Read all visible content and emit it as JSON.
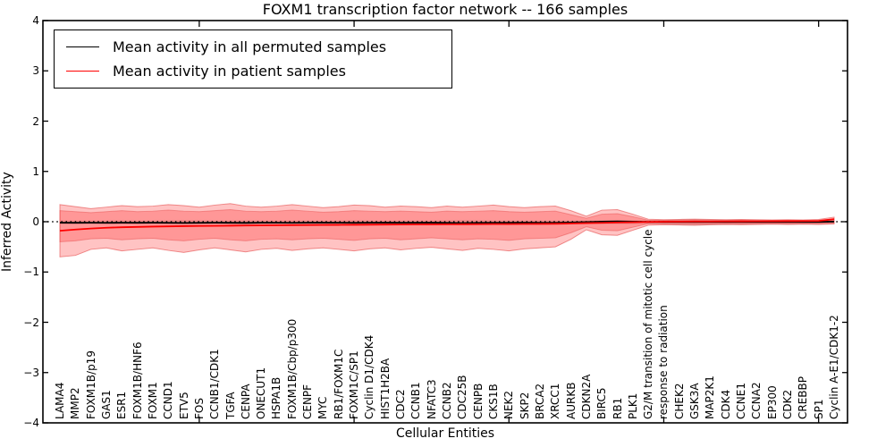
{
  "chart": {
    "title": "FOXM1 transcription factor network -- 166 samples",
    "xlabel": "Cellular Entities",
    "ylabel": "Inferred Activity"
  },
  "legend": {
    "items": [
      {
        "label": "Mean activity in all permuted samples",
        "color": "#000000"
      },
      {
        "label": "Mean activity in patient samples",
        "color": "#ff0000"
      }
    ]
  },
  "chart_data": {
    "type": "line",
    "title": "FOXM1 transcription factor network -- 166 samples",
    "xlabel": "Cellular Entities",
    "ylabel": "Inferred Activity",
    "ylim": [
      -4,
      4
    ],
    "grid": false,
    "legend_position": "upper left",
    "yticks": [
      {
        "value": 4,
        "label": "4"
      },
      {
        "value": 3,
        "label": "3"
      },
      {
        "value": 2,
        "label": "2"
      },
      {
        "value": 1,
        "label": "1"
      },
      {
        "value": 0,
        "label": "0"
      },
      {
        "value": -1,
        "label": "−1"
      },
      {
        "value": -2,
        "label": "−2"
      },
      {
        "value": -3,
        "label": "−3"
      },
      {
        "value": -4,
        "label": "−4"
      }
    ],
    "xticks_major": [
      10,
      20,
      30,
      40,
      50
    ],
    "categories": [
      "LAMA4",
      "MMP2",
      "FOXM1B/p19",
      "GAS1",
      "ESR1",
      "FOXM1B/HNF6",
      "FOXM1",
      "CCND1",
      "ETV5",
      "FOS",
      "CCNB1/CDK1",
      "TGFA",
      "CENPA",
      "ONECUT1",
      "HSPA1B",
      "FOXM1B/Cbp/p300",
      "CENPF",
      "MYC",
      "RB1/FOXM1C",
      "FOXM1C/SP1",
      "Cyclin D1/CDK4",
      "HIST1H2BA",
      "CDC2",
      "CCNB1",
      "NFATC3",
      "CCNB2",
      "CDC25B",
      "CENPB",
      "CKS1B",
      "NEK2",
      "SKP2",
      "BRCA2",
      "XRCC1",
      "AURKB",
      "CDKN2A",
      "BIRC5",
      "RB1",
      "PLK1",
      "G2/M transition of mitotic cell cycle",
      "response to radiation",
      "CHEK2",
      "GSK3A",
      "MAP2K1",
      "CDK4",
      "CCNE1",
      "CCNA2",
      "EP300",
      "CDK2",
      "CREBBP",
      "SP1",
      "Cyclin A-E1/CDK1-2"
    ],
    "zero_line": {
      "style": "dotted",
      "color": "#000000",
      "y": 0
    },
    "series": [
      {
        "name": "Mean activity in all permuted samples",
        "color": "#000000",
        "values": [
          -0.02,
          -0.021,
          -0.02,
          -0.022,
          -0.02,
          -0.021,
          -0.02,
          -0.022,
          -0.025,
          -0.022,
          -0.02,
          -0.021,
          -0.023,
          -0.02,
          -0.02,
          -0.022,
          -0.02,
          -0.019,
          -0.02,
          -0.022,
          -0.02,
          -0.019,
          -0.021,
          -0.02,
          -0.019,
          -0.023,
          -0.026,
          -0.022,
          -0.02,
          -0.02,
          -0.019,
          -0.02,
          -0.02,
          -0.015,
          -0.008,
          0.002,
          0.006,
          0.002,
          -0.004,
          -0.005,
          -0.005,
          -0.004,
          -0.005,
          -0.005,
          -0.004,
          -0.005,
          -0.004,
          -0.005,
          -0.004,
          -0.003,
          0.002
        ]
      },
      {
        "name": "Mean activity in patient samples",
        "color": "#ff0000",
        "values": [
          -0.18,
          -0.155,
          -0.135,
          -0.12,
          -0.11,
          -0.103,
          -0.097,
          -0.092,
          -0.088,
          -0.085,
          -0.082,
          -0.079,
          -0.076,
          -0.073,
          -0.071,
          -0.069,
          -0.067,
          -0.065,
          -0.063,
          -0.061,
          -0.059,
          -0.057,
          -0.056,
          -0.054,
          -0.053,
          -0.051,
          -0.05,
          -0.049,
          -0.047,
          -0.046,
          -0.044,
          -0.043,
          -0.041,
          -0.036,
          -0.028,
          -0.022,
          -0.016,
          -0.01,
          -0.004,
          0.0,
          0.002,
          0.004,
          0.005,
          0.007,
          0.008,
          0.009,
          0.01,
          0.012,
          0.013,
          0.016,
          0.05
        ]
      }
    ],
    "bands": [
      {
        "name": "permuted-samples-band",
        "fill": "rgba(60,60,60,0.15)",
        "edge": "none",
        "top": [
          0.03,
          0.03,
          0.028,
          0.03,
          0.032,
          0.03,
          0.03,
          0.032,
          0.035,
          0.032,
          0.03,
          0.03,
          0.032,
          0.03,
          0.03,
          0.03,
          0.03,
          0.03,
          0.03,
          0.032,
          0.03,
          0.03,
          0.03,
          0.03,
          0.03,
          0.032,
          0.035,
          0.032,
          0.03,
          0.03,
          0.03,
          0.03,
          0.03,
          0.028,
          0.025,
          0.03,
          0.032,
          0.03,
          0.028,
          0.035,
          0.045,
          0.05,
          0.045,
          0.04,
          0.035,
          0.03,
          0.03,
          0.03,
          0.03,
          0.03,
          0.03
        ],
        "bottom": [
          -0.05,
          -0.05,
          -0.048,
          -0.05,
          -0.052,
          -0.05,
          -0.05,
          -0.055,
          -0.06,
          -0.055,
          -0.05,
          -0.05,
          -0.055,
          -0.05,
          -0.05,
          -0.052,
          -0.05,
          -0.05,
          -0.05,
          -0.052,
          -0.05,
          -0.05,
          -0.052,
          -0.05,
          -0.05,
          -0.055,
          -0.06,
          -0.055,
          -0.05,
          -0.05,
          -0.05,
          -0.05,
          -0.05,
          -0.045,
          -0.04,
          -0.05,
          -0.052,
          -0.05,
          -0.045,
          -0.055,
          -0.07,
          -0.075,
          -0.07,
          -0.06,
          -0.055,
          -0.05,
          -0.05,
          -0.05,
          -0.05,
          -0.045,
          -0.04
        ]
      },
      {
        "name": "patient-samples-outer-band",
        "fill": "rgba(255,40,40,0.28)",
        "edge": "rgba(225,60,60,0.55)",
        "top": [
          0.34,
          0.3,
          0.26,
          0.29,
          0.32,
          0.3,
          0.31,
          0.34,
          0.32,
          0.29,
          0.33,
          0.36,
          0.31,
          0.29,
          0.31,
          0.34,
          0.31,
          0.28,
          0.3,
          0.33,
          0.32,
          0.29,
          0.31,
          0.3,
          0.28,
          0.31,
          0.29,
          0.31,
          0.33,
          0.3,
          0.28,
          0.3,
          0.31,
          0.22,
          0.11,
          0.23,
          0.24,
          0.15,
          0.05,
          0.04,
          0.045,
          0.05,
          0.045,
          0.04,
          0.045,
          0.04,
          0.035,
          0.04,
          0.035,
          0.045,
          0.09
        ],
        "bottom": [
          -0.7,
          -0.67,
          -0.55,
          -0.52,
          -0.58,
          -0.55,
          -0.52,
          -0.57,
          -0.61,
          -0.56,
          -0.52,
          -0.56,
          -0.6,
          -0.55,
          -0.53,
          -0.57,
          -0.54,
          -0.52,
          -0.55,
          -0.58,
          -0.54,
          -0.52,
          -0.56,
          -0.53,
          -0.51,
          -0.54,
          -0.57,
          -0.53,
          -0.55,
          -0.58,
          -0.54,
          -0.52,
          -0.5,
          -0.35,
          -0.16,
          -0.26,
          -0.27,
          -0.17,
          -0.07,
          -0.06,
          -0.065,
          -0.07,
          -0.06,
          -0.055,
          -0.06,
          -0.055,
          -0.05,
          -0.055,
          -0.05,
          -0.055,
          -0.045
        ]
      },
      {
        "name": "patient-samples-inner-band",
        "fill": "rgba(255,40,40,0.28)",
        "edge": "rgba(225,60,60,0.4)",
        "top": [
          0.22,
          0.2,
          0.18,
          0.2,
          0.22,
          0.2,
          0.21,
          0.23,
          0.21,
          0.2,
          0.22,
          0.24,
          0.21,
          0.2,
          0.21,
          0.23,
          0.21,
          0.19,
          0.2,
          0.22,
          0.21,
          0.2,
          0.21,
          0.2,
          0.19,
          0.21,
          0.2,
          0.21,
          0.22,
          0.2,
          0.19,
          0.2,
          0.21,
          0.14,
          0.07,
          0.15,
          0.16,
          0.1,
          0.03,
          0.025,
          0.03,
          0.035,
          0.03,
          0.025,
          0.03,
          0.025,
          0.022,
          0.025,
          0.022,
          0.03,
          0.055
        ],
        "bottom": [
          -0.4,
          -0.38,
          -0.34,
          -0.33,
          -0.36,
          -0.34,
          -0.33,
          -0.36,
          -0.38,
          -0.35,
          -0.33,
          -0.36,
          -0.38,
          -0.35,
          -0.34,
          -0.36,
          -0.34,
          -0.33,
          -0.35,
          -0.37,
          -0.34,
          -0.33,
          -0.36,
          -0.34,
          -0.32,
          -0.34,
          -0.36,
          -0.34,
          -0.35,
          -0.37,
          -0.34,
          -0.33,
          -0.32,
          -0.22,
          -0.1,
          -0.17,
          -0.18,
          -0.11,
          -0.04,
          -0.035,
          -0.04,
          -0.045,
          -0.04,
          -0.035,
          -0.04,
          -0.035,
          -0.032,
          -0.035,
          -0.032,
          -0.035,
          -0.03
        ]
      }
    ]
  }
}
